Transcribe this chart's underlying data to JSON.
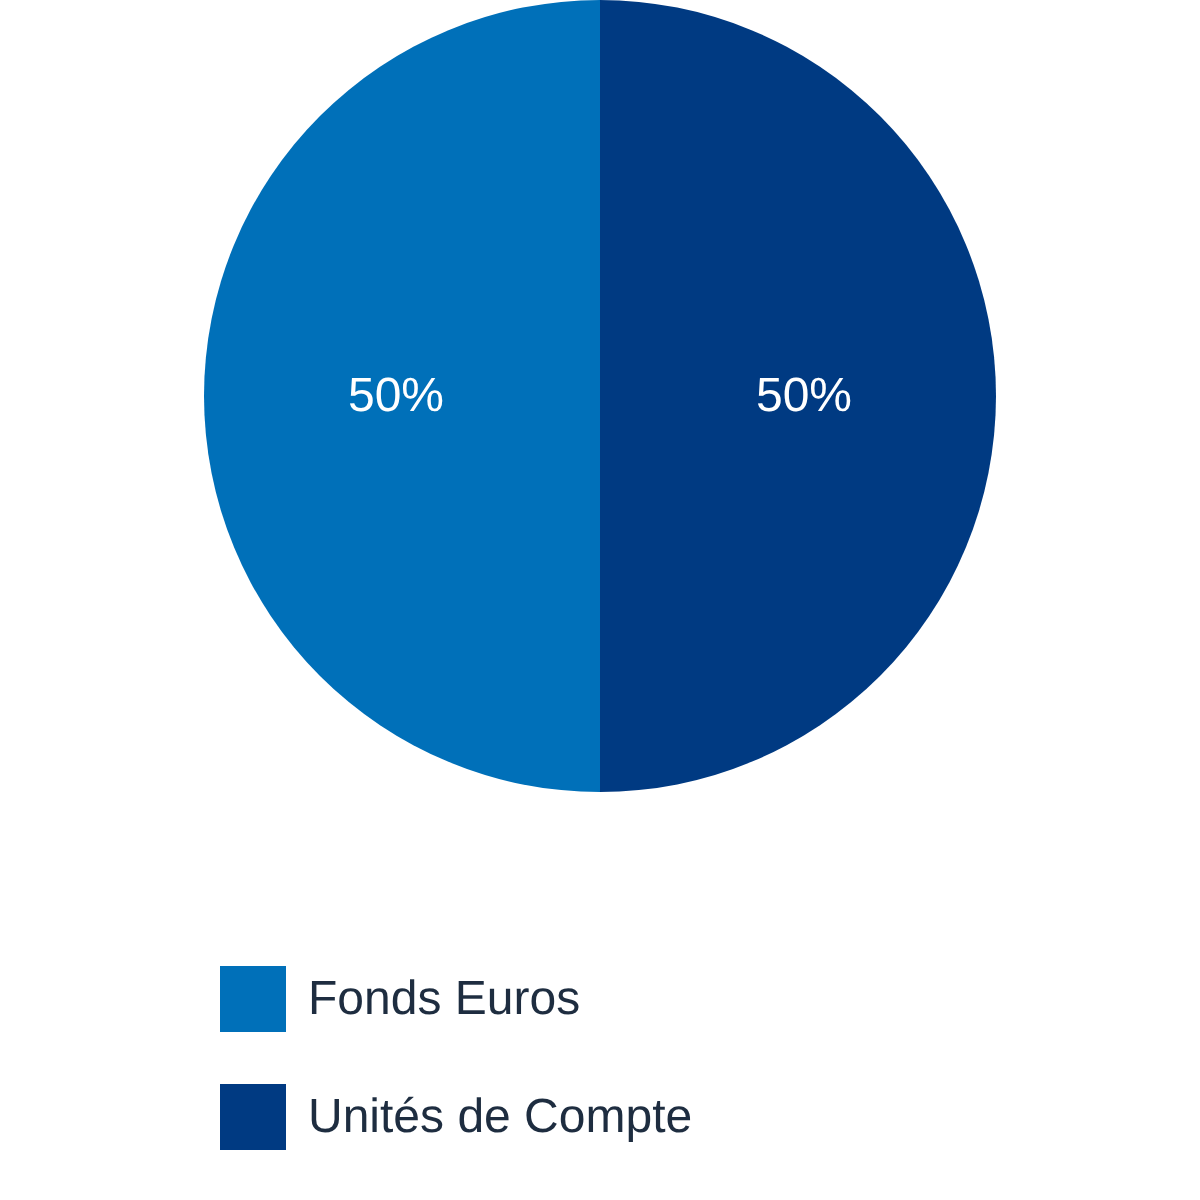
{
  "chart_data": {
    "type": "pie",
    "categories": [
      "Fonds Euros",
      "Unités de Compte"
    ],
    "values": [
      50,
      50
    ],
    "colors": [
      "#0070b9",
      "#003a82"
    ],
    "value_labels": [
      "50%",
      "50%"
    ],
    "legend": "bottom"
  }
}
